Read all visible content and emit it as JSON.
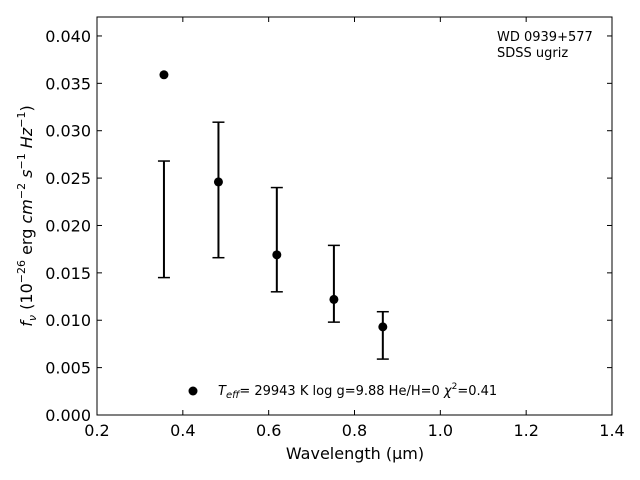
{
  "chart_data": {
    "type": "scatter",
    "xlabel": "Wavelength (μm)",
    "ylabel_parts": {
      "f": "f",
      "nu": "ν",
      "open": " (10",
      "exp26": "−26",
      "erg": " erg ",
      "cm": "cm",
      "cm_exp": "−2",
      "s": " s",
      "s_exp": "−1",
      "hz": " Hz",
      "hz_exp": "−1",
      "close": ")"
    },
    "xlim": [
      0.2,
      1.4
    ],
    "ylim": [
      0.0,
      0.042
    ],
    "xticks": [
      0.2,
      0.4,
      0.6,
      0.8,
      1.0,
      1.2,
      1.4
    ],
    "xtick_labels": [
      "0.2",
      "0.4",
      "0.6",
      "0.8",
      "1.0",
      "1.2",
      "1.4"
    ],
    "yticks": [
      0.0,
      0.005,
      0.01,
      0.015,
      0.02,
      0.025,
      0.03,
      0.035,
      0.04
    ],
    "ytick_labels": [
      "0.000",
      "0.005",
      "0.010",
      "0.015",
      "0.020",
      "0.025",
      "0.030",
      "0.035",
      "0.040"
    ],
    "grid": false,
    "annotation_lines": [
      "WD 0939+577",
      "SDSS ugriz"
    ],
    "points": {
      "x": [
        0.356,
        0.483,
        0.619,
        0.752,
        0.866
      ],
      "y": [
        0.0359,
        0.0246,
        0.0169,
        0.0122,
        0.0093
      ]
    },
    "error_bars": [
      {
        "x": 0.356,
        "low": 0.0145,
        "high": 0.0268
      },
      {
        "x": 0.483,
        "low": 0.0166,
        "high": 0.0309
      },
      {
        "x": 0.619,
        "low": 0.013,
        "high": 0.024
      },
      {
        "x": 0.752,
        "low": 0.0098,
        "high": 0.0179
      },
      {
        "x": 0.866,
        "low": 0.0059,
        "high": 0.0109
      }
    ],
    "legend": {
      "placement": "bottom-center",
      "teff_T": "T",
      "teff_sub": "eff",
      "rest": "= 29943 K  log g=9.88  He/H=0  ",
      "chi": "χ",
      "chi_exp": "2",
      "chi_val": "=0.41"
    },
    "colors": {
      "marker": "#000000",
      "axes": "#000000",
      "background": "#ffffff"
    }
  }
}
